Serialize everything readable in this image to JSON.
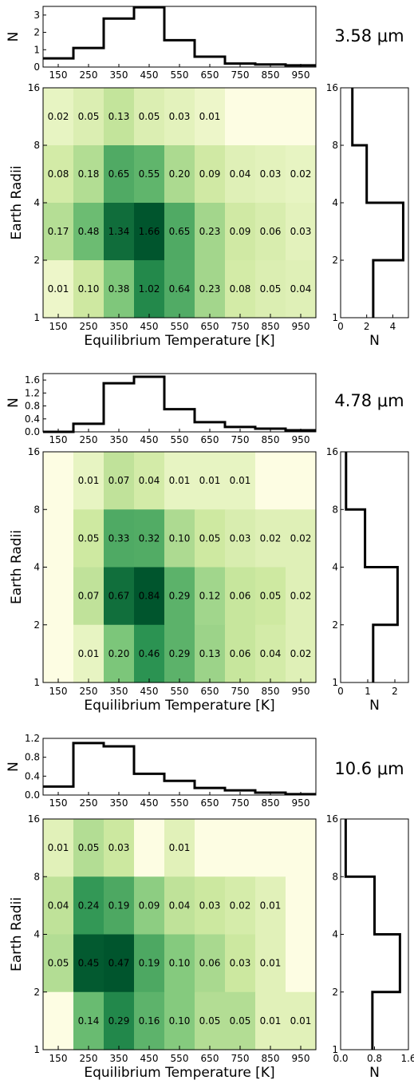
{
  "chart_data": [
    {
      "type": "heatmap",
      "wavelength_label": "3.58 μm",
      "xlabel": "Equilibrium Temperature [K]",
      "ylabel": "Earth Radii",
      "x_tick_labels": [
        "150",
        "250",
        "350",
        "450",
        "550",
        "650",
        "750",
        "850",
        "950"
      ],
      "y_tick_labels": [
        "1",
        "2",
        "4",
        "8",
        "16"
      ],
      "heatmap": {
        "x_bins": [
          150,
          250,
          350,
          450,
          550,
          650,
          750,
          850,
          950
        ],
        "radius_bins": [
          "8-16",
          "4-8",
          "2-4",
          "1-2"
        ],
        "values": [
          [
            0.02,
            0.05,
            0.13,
            0.05,
            0.03,
            0.01,
            0.0,
            0.0,
            0.0
          ],
          [
            0.08,
            0.18,
            0.65,
            0.55,
            0.2,
            0.09,
            0.04,
            0.03,
            0.02
          ],
          [
            0.17,
            0.48,
            1.34,
            1.66,
            0.65,
            0.23,
            0.09,
            0.06,
            0.03
          ],
          [
            0.01,
            0.1,
            0.38,
            1.02,
            0.64,
            0.23,
            0.08,
            0.05,
            0.04
          ]
        ],
        "cell_labels": [
          [
            "0.02",
            "0.05",
            "0.13",
            "0.05",
            "0.03",
            "0.01",
            "",
            "",
            ""
          ],
          [
            "0.08",
            "0.18",
            "0.65",
            "0.55",
            "0.20",
            "0.09",
            "0.04",
            "0.03",
            "0.02"
          ],
          [
            "0.17",
            "0.48",
            "1.34",
            "1.66",
            "0.65",
            "0.23",
            "0.09",
            "0.06",
            "0.03"
          ],
          [
            "0.01",
            "0.10",
            "0.38",
            "1.02",
            "0.64",
            "0.23",
            "0.08",
            "0.05",
            "0.04"
          ]
        ]
      },
      "top_histogram": {
        "ylabel": "N",
        "y_ticks": [
          "0",
          "1",
          "2",
          "3"
        ],
        "ylim": [
          0,
          3.5
        ],
        "values": [
          0.5,
          1.1,
          2.8,
          3.45,
          1.55,
          0.6,
          0.2,
          0.15,
          0.1
        ]
      },
      "side_histogram": {
        "xlabel": "N",
        "x_ticks": [
          "0",
          "2",
          "4"
        ],
        "xlim": [
          0,
          5.2
        ],
        "values": [
          0.9,
          2.0,
          4.8,
          2.5
        ]
      }
    },
    {
      "type": "heatmap",
      "wavelength_label": "4.78 μm",
      "xlabel": "Equilibrium Temperature [K]",
      "ylabel": "Earth Radii",
      "x_tick_labels": [
        "150",
        "250",
        "350",
        "450",
        "550",
        "650",
        "750",
        "850",
        "950"
      ],
      "y_tick_labels": [
        "1",
        "2",
        "4",
        "8",
        "16"
      ],
      "heatmap": {
        "x_bins": [
          150,
          250,
          350,
          450,
          550,
          650,
          750,
          850,
          950
        ],
        "radius_bins": [
          "8-16",
          "4-8",
          "2-4",
          "1-2"
        ],
        "values": [
          [
            0.0,
            0.01,
            0.07,
            0.04,
            0.01,
            0.01,
            0.01,
            0.0,
            0.0
          ],
          [
            0.0,
            0.05,
            0.33,
            0.32,
            0.1,
            0.05,
            0.03,
            0.02,
            0.02
          ],
          [
            0.0,
            0.07,
            0.67,
            0.84,
            0.29,
            0.12,
            0.06,
            0.05,
            0.02
          ],
          [
            0.0,
            0.01,
            0.2,
            0.46,
            0.29,
            0.13,
            0.06,
            0.04,
            0.02
          ]
        ],
        "cell_labels": [
          [
            "",
            "0.01",
            "0.07",
            "0.04",
            "0.01",
            "0.01",
            "0.01",
            "",
            ""
          ],
          [
            "",
            "0.05",
            "0.33",
            "0.32",
            "0.10",
            "0.05",
            "0.03",
            "0.02",
            "0.02"
          ],
          [
            "",
            "0.07",
            "0.67",
            "0.84",
            "0.29",
            "0.12",
            "0.06",
            "0.05",
            "0.02"
          ],
          [
            "",
            "0.01",
            "0.20",
            "0.46",
            "0.29",
            "0.13",
            "0.06",
            "0.04",
            "0.02"
          ]
        ]
      },
      "top_histogram": {
        "ylabel": "N",
        "y_ticks": [
          "0.0",
          "0.4",
          "0.8",
          "1.2",
          "1.6"
        ],
        "ylim": [
          0,
          1.8
        ],
        "values": [
          0.0,
          0.25,
          1.5,
          1.7,
          0.7,
          0.3,
          0.15,
          0.1,
          0.05
        ]
      },
      "side_histogram": {
        "xlabel": "N",
        "x_ticks": [
          "0",
          "1",
          "2"
        ],
        "xlim": [
          0,
          2.5
        ],
        "values": [
          0.2,
          0.9,
          2.1,
          1.2
        ]
      }
    },
    {
      "type": "heatmap",
      "wavelength_label": "10.6 μm",
      "xlabel": "Equilibrium Temperature [K]",
      "ylabel": "Earth Radii",
      "x_tick_labels": [
        "150",
        "250",
        "350",
        "450",
        "550",
        "650",
        "750",
        "850",
        "950"
      ],
      "y_tick_labels": [
        "1",
        "2",
        "4",
        "8",
        "16"
      ],
      "heatmap": {
        "x_bins": [
          150,
          250,
          350,
          450,
          550,
          650,
          750,
          850,
          950
        ],
        "radius_bins": [
          "8-16",
          "4-8",
          "2-4",
          "1-2"
        ],
        "values": [
          [
            0.01,
            0.05,
            0.03,
            0.0,
            0.01,
            0.0,
            0.0,
            0.0,
            0.0
          ],
          [
            0.04,
            0.24,
            0.19,
            0.09,
            0.04,
            0.03,
            0.02,
            0.01,
            0.0
          ],
          [
            0.05,
            0.45,
            0.47,
            0.19,
            0.1,
            0.06,
            0.03,
            0.01,
            0.0
          ],
          [
            0.0,
            0.14,
            0.29,
            0.16,
            0.1,
            0.05,
            0.05,
            0.01,
            0.01
          ]
        ],
        "cell_labels": [
          [
            "0.01",
            "0.05",
            "0.03",
            "",
            "0.01",
            "",
            "",
            "",
            ""
          ],
          [
            "0.04",
            "0.24",
            "0.19",
            "0.09",
            "0.04",
            "0.03",
            "0.02",
            "0.01",
            ""
          ],
          [
            "0.05",
            "0.45",
            "0.47",
            "0.19",
            "0.10",
            "0.06",
            "0.03",
            "0.01",
            ""
          ],
          [
            "",
            "0.14",
            "0.29",
            "0.16",
            "0.10",
            "0.05",
            "0.05",
            "0.01",
            "0.01"
          ]
        ]
      },
      "top_histogram": {
        "ylabel": "N",
        "y_ticks": [
          "0.0",
          "0.4",
          "0.8",
          "1.2"
        ],
        "ylim": [
          0,
          1.2
        ],
        "values": [
          0.18,
          1.1,
          1.03,
          0.45,
          0.3,
          0.15,
          0.1,
          0.05,
          0.02
        ]
      },
      "side_histogram": {
        "xlabel": "N",
        "x_ticks": [
          "0.0",
          "0.8",
          "1.6"
        ],
        "xlim": [
          0,
          1.6
        ],
        "values": [
          0.12,
          0.8,
          1.4,
          0.75
        ]
      }
    }
  ]
}
